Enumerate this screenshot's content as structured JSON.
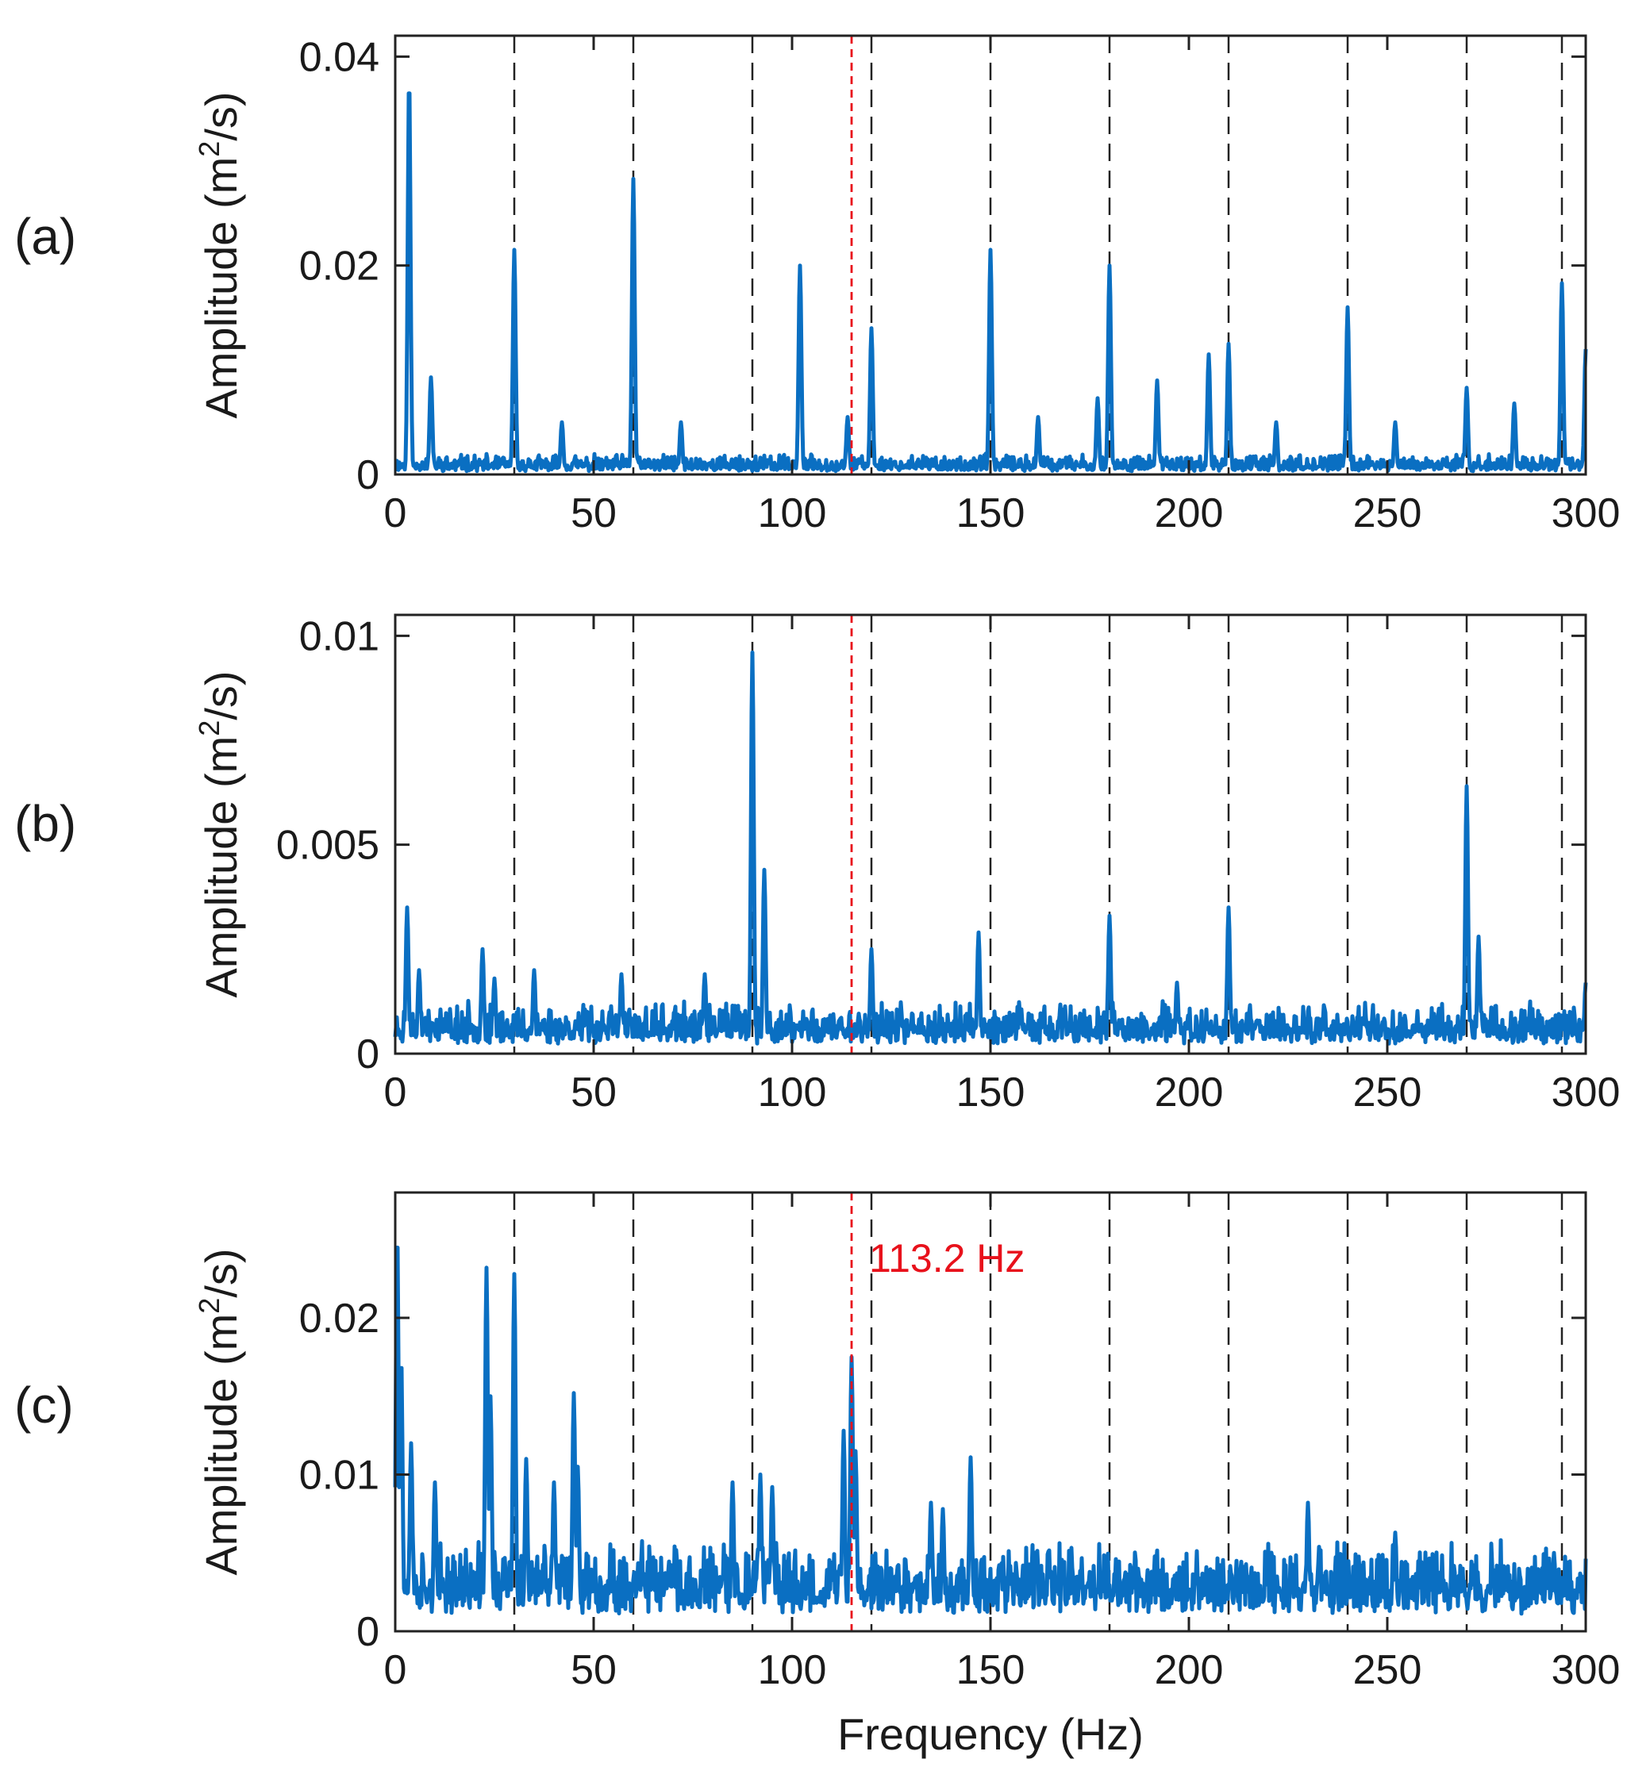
{
  "chart_data": [
    {
      "type": "line",
      "panel_label": "(a)",
      "ylabel": "Amplitude (m",
      "ylabel_sup": "2",
      "ylabel_tail": "/s)",
      "xlabel": "",
      "xlim": [
        0,
        300
      ],
      "ylim": [
        0,
        0.042
      ],
      "xticks": [
        0,
        50,
        100,
        150,
        200,
        250,
        300
      ],
      "xtick_labels": [
        "0",
        "50",
        "100",
        "150",
        "200",
        "250",
        "300"
      ],
      "yticks": [
        0,
        0.02,
        0.04
      ],
      "ytick_labels": [
        "0",
        "0.02",
        "0.04"
      ],
      "series_color": "#0a6fc2",
      "baseline": 0.0008,
      "noise": 0.0012,
      "seed": 11,
      "peaks": [
        [
          3.5,
          0.038
        ],
        [
          9,
          0.0093
        ],
        [
          30,
          0.0215
        ],
        [
          42,
          0.005
        ],
        [
          60,
          0.0283
        ],
        [
          72,
          0.005
        ],
        [
          102,
          0.02
        ],
        [
          114,
          0.0055
        ],
        [
          120,
          0.014
        ],
        [
          150,
          0.0215
        ],
        [
          162,
          0.0055
        ],
        [
          177,
          0.0073
        ],
        [
          180,
          0.02
        ],
        [
          192,
          0.009
        ],
        [
          205,
          0.0115
        ],
        [
          210,
          0.0125
        ],
        [
          222,
          0.005
        ],
        [
          240,
          0.016
        ],
        [
          252,
          0.005
        ],
        [
          270,
          0.0083
        ],
        [
          282,
          0.0068
        ],
        [
          294,
          0.0183
        ],
        [
          300,
          0.012
        ]
      ],
      "dashed_lines": [
        30,
        60,
        90,
        120,
        150,
        180,
        210,
        240,
        270,
        294
      ],
      "marker_line": 115,
      "marker_color": "#e8111b"
    },
    {
      "type": "line",
      "panel_label": "(b)",
      "ylabel": "Amplitude (m",
      "ylabel_sup": "2",
      "ylabel_tail": "/s)",
      "xlabel": "",
      "xlim": [
        0,
        300
      ],
      "ylim": [
        0,
        0.0105
      ],
      "xticks": [
        0,
        50,
        100,
        150,
        200,
        250,
        300
      ],
      "xtick_labels": [
        "0",
        "50",
        "100",
        "150",
        "200",
        "250",
        "300"
      ],
      "yticks": [
        0,
        0.005,
        0.01
      ],
      "ytick_labels": [
        "0",
        "0.005",
        "0.01"
      ],
      "series_color": "#0a6fc2",
      "baseline": 0.0006,
      "noise": 0.0007,
      "seed": 23,
      "peaks": [
        [
          3,
          0.0035
        ],
        [
          6,
          0.002
        ],
        [
          22,
          0.0025
        ],
        [
          25,
          0.0018
        ],
        [
          35,
          0.002
        ],
        [
          57,
          0.0019
        ],
        [
          78,
          0.0019
        ],
        [
          90,
          0.0096
        ],
        [
          93,
          0.0044
        ],
        [
          120,
          0.0025
        ],
        [
          147,
          0.0029
        ],
        [
          180,
          0.0033
        ],
        [
          197,
          0.0017
        ],
        [
          210,
          0.0035
        ],
        [
          270,
          0.0064
        ],
        [
          273,
          0.0028
        ],
        [
          300,
          0.0017
        ]
      ],
      "dashed_lines": [
        30,
        60,
        90,
        120,
        150,
        180,
        210,
        240,
        270,
        294
      ],
      "marker_line": 115,
      "marker_color": "#e8111b"
    },
    {
      "type": "line",
      "panel_label": "(c)",
      "ylabel": "Amplitude (m",
      "ylabel_sup": "2",
      "ylabel_tail": "/s)",
      "xlabel": "Frequency (Hz)",
      "xlim": [
        0,
        300
      ],
      "ylim": [
        0,
        0.028
      ],
      "xticks": [
        0,
        50,
        100,
        150,
        200,
        250,
        300
      ],
      "xtick_labels": [
        "0",
        "50",
        "100",
        "150",
        "200",
        "250",
        "300"
      ],
      "yticks": [
        0,
        0.01,
        0.02
      ],
      "ytick_labels": [
        "0",
        "0.01",
        "0.02"
      ],
      "series_color": "#0a6fc2",
      "baseline": 0.0028,
      "noise": 0.0032,
      "seed": 37,
      "peaks": [
        [
          0.5,
          0.0255
        ],
        [
          1.5,
          0.0175
        ],
        [
          4,
          0.012
        ],
        [
          10,
          0.0095
        ],
        [
          23,
          0.0232
        ],
        [
          24,
          0.015
        ],
        [
          30,
          0.0228
        ],
        [
          33,
          0.011
        ],
        [
          40,
          0.0095
        ],
        [
          45,
          0.0152
        ],
        [
          46,
          0.0105
        ],
        [
          85,
          0.0095
        ],
        [
          92,
          0.01
        ],
        [
          95,
          0.0092
        ],
        [
          113,
          0.0128
        ],
        [
          115,
          0.0175
        ],
        [
          116,
          0.0115
        ],
        [
          135,
          0.0082
        ],
        [
          138,
          0.0078
        ],
        [
          145,
          0.0111
        ],
        [
          230,
          0.0082
        ],
        [
          252,
          0.0063
        ],
        [
          292,
          0.005
        ]
      ],
      "dashed_lines": [
        30,
        60,
        90,
        120,
        150,
        180,
        210,
        240,
        270,
        294
      ],
      "marker_line": 115,
      "marker_color": "#e8111b",
      "annotation": "113.2 Hz"
    }
  ]
}
